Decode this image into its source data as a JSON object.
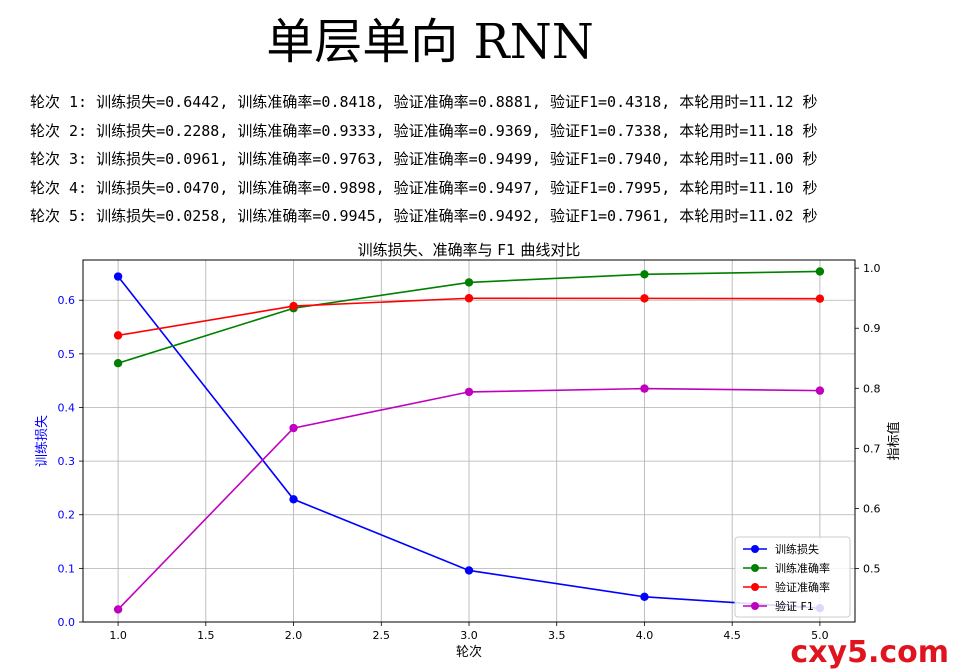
{
  "title": "单层单向 RNN",
  "log_lines": [
    "轮次 1: 训练损失=0.6442, 训练准确率=0.8418, 验证准确率=0.8881, 验证F1=0.4318, 本轮用时=11.12 秒",
    "轮次 2: 训练损失=0.2288, 训练准确率=0.9333, 验证准确率=0.9369, 验证F1=0.7338, 本轮用时=11.18 秒",
    "轮次 3: 训练损失=0.0961, 训练准确率=0.9763, 验证准确率=0.9499, 验证F1=0.7940, 本轮用时=11.00 秒",
    "轮次 4: 训练损失=0.0470, 训练准确率=0.9898, 验证准确率=0.9497, 验证F1=0.7995, 本轮用时=11.10 秒",
    "轮次 5: 训练损失=0.0258, 训练准确率=0.9945, 验证准确率=0.9492, 验证F1=0.7961, 本轮用时=11.02 秒"
  ],
  "watermark": "cxy5.com",
  "chart_data": {
    "type": "line",
    "title": "训练损失、准确率与 F1 曲线对比",
    "xlabel": "轮次",
    "ylabel_left": "训练损失",
    "ylabel_right": "指标值",
    "x": [
      1,
      2,
      3,
      4,
      5
    ],
    "xlim": [
      0.8,
      5.2
    ],
    "ylim_left": [
      0,
      0.675
    ],
    "ylim_right": [
      0.4109,
      1.0136
    ],
    "x_ticks": [
      "1.0",
      "1.5",
      "2.0",
      "2.5",
      "3.0",
      "3.5",
      "4.0",
      "4.5",
      "5.0"
    ],
    "y_left_ticks": [
      "0.0",
      "0.1",
      "0.2",
      "0.3",
      "0.4",
      "0.5",
      "0.6"
    ],
    "y_right_ticks": [
      "0.5",
      "0.6",
      "0.7",
      "0.8",
      "0.9",
      "1.0"
    ],
    "grid": true,
    "legend_position": "lower-right",
    "series": [
      {
        "name": "训练损失",
        "axis": "left",
        "color": "#0000ff",
        "values": [
          0.6442,
          0.2288,
          0.0961,
          0.047,
          0.0258
        ]
      },
      {
        "name": "训练准确率",
        "axis": "right",
        "color": "#008000",
        "values": [
          0.8418,
          0.9333,
          0.9763,
          0.9898,
          0.9945
        ]
      },
      {
        "name": "验证准确率",
        "axis": "right",
        "color": "#ff0000",
        "values": [
          0.8881,
          0.9369,
          0.9499,
          0.9497,
          0.9492
        ]
      },
      {
        "name": "验证 F1",
        "axis": "right",
        "color": "#bf00bf",
        "values": [
          0.4318,
          0.7338,
          0.794,
          0.7995,
          0.7961
        ]
      }
    ]
  }
}
